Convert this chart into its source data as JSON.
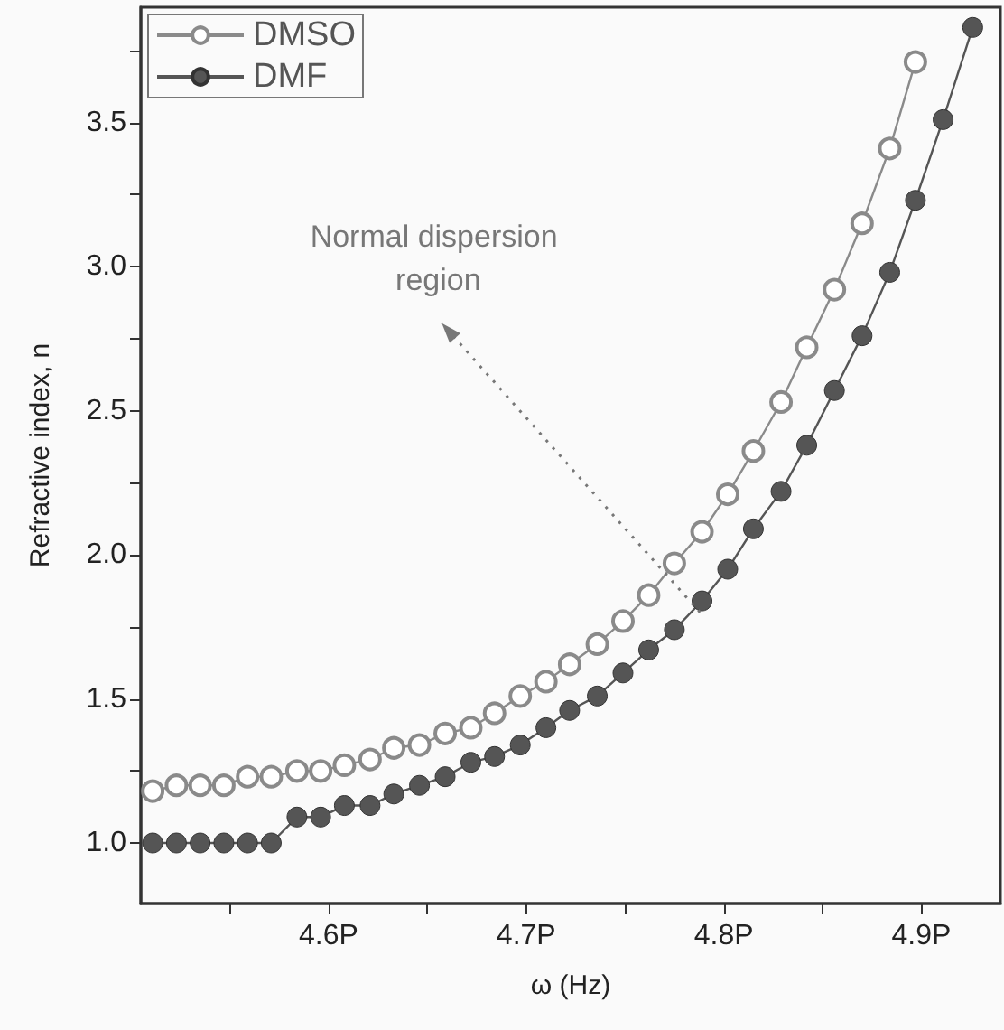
{
  "chart_data": {
    "type": "line",
    "xlabel": "ω (Hz)",
    "ylabel": "Refractive index, n",
    "x": [
      4.511,
      4.523,
      4.535,
      4.547,
      4.559,
      4.571,
      4.584,
      4.596,
      4.608,
      4.621,
      4.633,
      4.646,
      4.659,
      4.672,
      4.684,
      4.697,
      4.71,
      4.722,
      4.736,
      4.749,
      4.762,
      4.775,
      4.789,
      4.802,
      4.815,
      4.829,
      4.842,
      4.856,
      4.87,
      4.884,
      4.897,
      4.911,
      4.926
    ],
    "series": [
      {
        "name": "DMSO",
        "color": "#8a8a8a",
        "values": [
          1.18,
          1.2,
          1.2,
          1.2,
          1.23,
          1.23,
          1.25,
          1.25,
          1.27,
          1.29,
          1.33,
          1.34,
          1.38,
          1.4,
          1.45,
          1.51,
          1.56,
          1.62,
          1.69,
          1.77,
          1.86,
          1.97,
          2.08,
          2.21,
          2.36,
          2.53,
          2.72,
          2.92,
          3.15,
          3.41,
          3.71,
          null,
          null
        ]
      },
      {
        "name": "DMF",
        "color": "#555555",
        "values": [
          1.0,
          1.0,
          1.0,
          1.0,
          1.0,
          1.0,
          1.09,
          1.09,
          1.13,
          1.13,
          1.17,
          1.2,
          1.23,
          1.28,
          1.3,
          1.34,
          1.4,
          1.46,
          1.51,
          1.59,
          1.67,
          1.74,
          1.84,
          1.95,
          2.09,
          2.22,
          2.38,
          2.57,
          2.76,
          2.98,
          3.23,
          3.51,
          3.83
        ]
      }
    ],
    "xlim": [
      4.505,
      4.94
    ],
    "xticks": [
      {
        "value": 4.55,
        "label": null
      },
      {
        "value": 4.6,
        "label": "4.6P"
      },
      {
        "value": 4.65,
        "label": null
      },
      {
        "value": 4.7,
        "label": "4.7P"
      },
      {
        "value": 4.75,
        "label": null
      },
      {
        "value": 4.8,
        "label": "4.8P"
      },
      {
        "value": 4.85,
        "label": null
      },
      {
        "value": 4.9,
        "label": "4.9P"
      }
    ],
    "ylim": [
      0.79,
      3.9
    ],
    "yticks": [
      {
        "value": 1,
        "label": "1.0"
      },
      {
        "value": 1.25,
        "label": null
      },
      {
        "value": 1.5,
        "label": "1.5"
      },
      {
        "value": 1.75,
        "label": null
      },
      {
        "value": 2,
        "label": "2.0"
      },
      {
        "value": 2.25,
        "label": null
      },
      {
        "value": 2.5,
        "label": "2.5"
      },
      {
        "value": 2.75,
        "label": null
      },
      {
        "value": 3,
        "label": "3.0"
      },
      {
        "value": 3.25,
        "label": null
      },
      {
        "value": 3.5,
        "label": "3.5"
      },
      {
        "value": 3.75,
        "label": null
      }
    ],
    "annotations": [
      {
        "text": "Normal dispersion region",
        "x": 4.788,
        "y": 1.8
      }
    ],
    "legend": "top left",
    "grid": false,
    "marker": "circle",
    "line_style": "solid"
  }
}
